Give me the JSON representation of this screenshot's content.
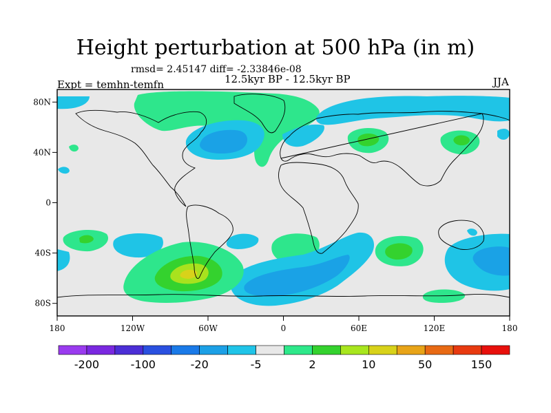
{
  "title": "Height perturbation at 500 hPa (in m)",
  "stats": "rmsd= 2.45147 diff= -2.33846e-08",
  "period": "12.5kyr BP - 12.5kyr BP",
  "experiment": "Expt = temhn-temfn",
  "season": "JJA",
  "map": {
    "lon_range": [
      -180,
      180
    ],
    "lat_range": [
      -90,
      90
    ],
    "lat_ticks": [
      "80N",
      "40N",
      "0",
      "40S",
      "80S"
    ],
    "lat_tick_values": [
      80,
      40,
      0,
      -40,
      -80
    ],
    "lon_ticks": [
      "180",
      "120W",
      "60W",
      "0",
      "60E",
      "120E",
      "180"
    ],
    "lon_tick_values": [
      -180,
      -120,
      -60,
      0,
      60,
      120,
      180
    ],
    "background_color": "#e8e8e8"
  },
  "colorbar": {
    "colors": [
      "#9a3bef",
      "#7a28e0",
      "#4b2ed6",
      "#2a50e0",
      "#1a7ae8",
      "#1ca0e6",
      "#20c4e8",
      "#e8e8e8",
      "#2ee88a",
      "#34d22e",
      "#a8e61e",
      "#d8d21a",
      "#e8a418",
      "#e86a14",
      "#e83a10",
      "#e8100c"
    ],
    "labels": [
      "-200",
      "-100",
      "-20",
      "-5",
      "2",
      "10",
      "50",
      "150"
    ]
  },
  "field_colors": {
    "neg_light": "#1fc4e6",
    "neg_mid": "#1aa2e6",
    "neg_deep": "#177ce6",
    "pos_light": "#2ee68c",
    "pos_mid": "#34d22e",
    "pos_high": "#a8e21e",
    "pos_peak": "#d8d21a"
  }
}
